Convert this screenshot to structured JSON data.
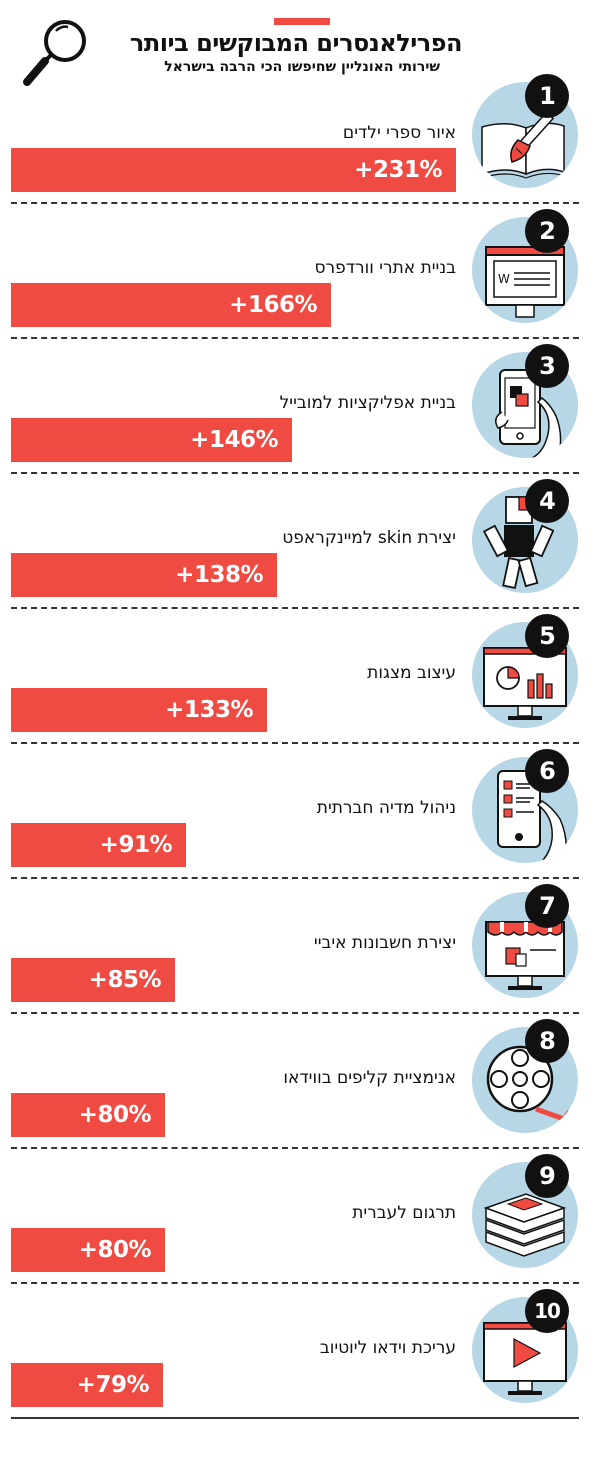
{
  "colors": {
    "accent": "#ef4b43",
    "circle": "#b7d6e6",
    "ink": "#111111"
  },
  "header": {
    "title": "הפרילאנסרים המבוקשים ביותר",
    "subtitle": "שירותי האונליין שחיפשו הכי הרבה בישראל",
    "icon": "magnifier-icon"
  },
  "chart_data": {
    "type": "bar",
    "orientation": "horizontal",
    "title": "הפרילאנסרים המבוקשים ביותר",
    "subtitle": "שירותי האונליין שחיפשו הכי הרבה בישראל",
    "xlabel": "",
    "ylabel": "",
    "unit": "%",
    "grid": false,
    "xlim": [
      0,
      231
    ],
    "categories": [
      "איור ספרי ילדים",
      "בניית אתרי וורדפרס",
      "בניית אפליקציות למובייל",
      "יצירת skin למיינקראפט",
      "עיצוב מצגות",
      "ניהול מדיה חברתית",
      "יצירת חשבונות איביי",
      "אנימציית קליפים בווידאו",
      "תרגום לעברית",
      "עריכת וידאו ליוטיוב"
    ],
    "values": [
      231,
      166,
      146,
      138,
      133,
      91,
      85,
      80,
      80,
      79
    ],
    "value_labels": [
      "+231%",
      "+166%",
      "+146%",
      "+138%",
      "+133%",
      "+91%",
      "+85%",
      "+80%",
      "+80%",
      "+79%"
    ],
    "ranks": [
      "1",
      "2",
      "3",
      "4",
      "5",
      "6",
      "7",
      "8",
      "9",
      "10"
    ],
    "icons": [
      "paintbrush-book-icon",
      "website-browser-icon",
      "mobile-app-icon",
      "minecraft-character-icon",
      "presentation-monitor-icon",
      "social-media-phone-icon",
      "ebay-store-icon",
      "film-reel-icon",
      "book-stack-icon",
      "youtube-video-icon"
    ]
  }
}
